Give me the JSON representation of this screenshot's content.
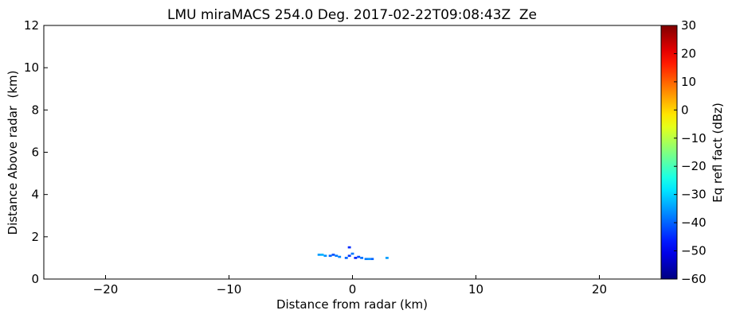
{
  "chart_data": {
    "type": "rhi",
    "title": "LMU miraMACS 254.0 Deg. 2017-02-22T09:08:43Z  Ze",
    "xlabel": "Distance from radar (km)",
    "ylabel": "Distance Above radar  (km)",
    "colorbar_label": "Eq refl fact (dBz)",
    "x": [
      -2.7,
      -2.45,
      -2.2,
      -1.8,
      -1.55,
      -1.3,
      -1.05,
      -0.5,
      -0.25,
      -0.25,
      0,
      0.25,
      0.5,
      0.75,
      1.1,
      1.35,
      1.6,
      2.8
    ],
    "y": [
      1.15,
      1.15,
      1.1,
      1.1,
      1.15,
      1.1,
      1.05,
      1.0,
      1.5,
      1.1,
      1.2,
      1.0,
      1.05,
      1.0,
      0.95,
      0.95,
      0.95,
      1.0
    ],
    "values": [
      -35,
      -33,
      -36,
      -40,
      -42,
      -38,
      -37,
      -40,
      -45,
      -44,
      -38,
      -46,
      -42,
      -39,
      -38,
      -36,
      -40,
      -35
    ],
    "xlim": [
      -25,
      25
    ],
    "xticks": [
      {
        "value": -20,
        "label": "−20"
      },
      {
        "value": -10,
        "label": "−10"
      },
      0,
      10,
      20
    ],
    "ylim": [
      0,
      12
    ],
    "yticks": [
      0,
      2,
      4,
      6,
      8,
      10,
      12
    ],
    "clim": [
      -60,
      30
    ],
    "cticks": [
      {
        "value": -60,
        "label": "−60"
      },
      {
        "value": -50,
        "label": "−50"
      },
      {
        "value": -40,
        "label": "−40"
      },
      {
        "value": -30,
        "label": "−30"
      },
      {
        "value": -20,
        "label": "−20"
      },
      {
        "value": -10,
        "label": "−10"
      },
      0,
      10,
      20,
      30
    ],
    "colormap": "jet"
  }
}
